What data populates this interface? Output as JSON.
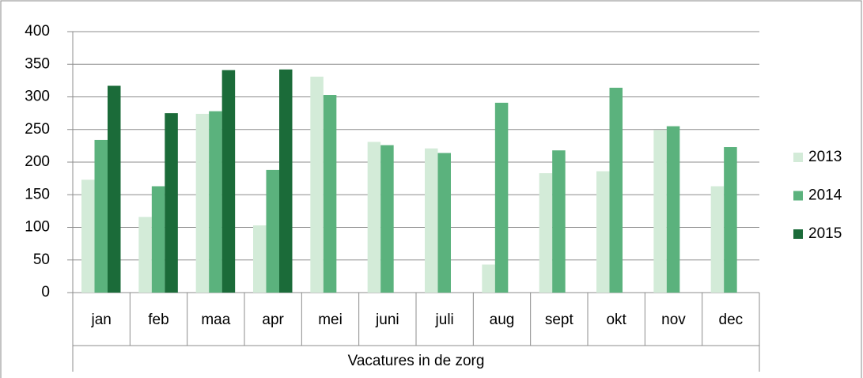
{
  "chart_data": {
    "type": "bar",
    "xlabel": "Vacatures in de zorg",
    "categories": [
      "jan",
      "feb",
      "maa",
      "apr",
      "mei",
      "juni",
      "juli",
      "aug",
      "sept",
      "okt",
      "nov",
      "dec"
    ],
    "series": [
      {
        "name": "2013",
        "color": "#d3ebd8",
        "values": [
          173,
          116,
          274,
          103,
          331,
          231,
          221,
          43,
          183,
          186,
          249,
          163
        ]
      },
      {
        "name": "2014",
        "color": "#5bb27d",
        "values": [
          234,
          163,
          278,
          188,
          303,
          226,
          214,
          291,
          218,
          314,
          255,
          223
        ]
      },
      {
        "name": "2015",
        "color": "#1b6b39",
        "values": [
          317,
          275,
          341,
          342,
          null,
          null,
          null,
          null,
          null,
          null,
          null,
          null
        ]
      }
    ],
    "ylim": [
      0,
      400
    ],
    "yticks": [
      0,
      50,
      100,
      150,
      200,
      250,
      300,
      350,
      400
    ],
    "grid": true,
    "legend": "right"
  }
}
